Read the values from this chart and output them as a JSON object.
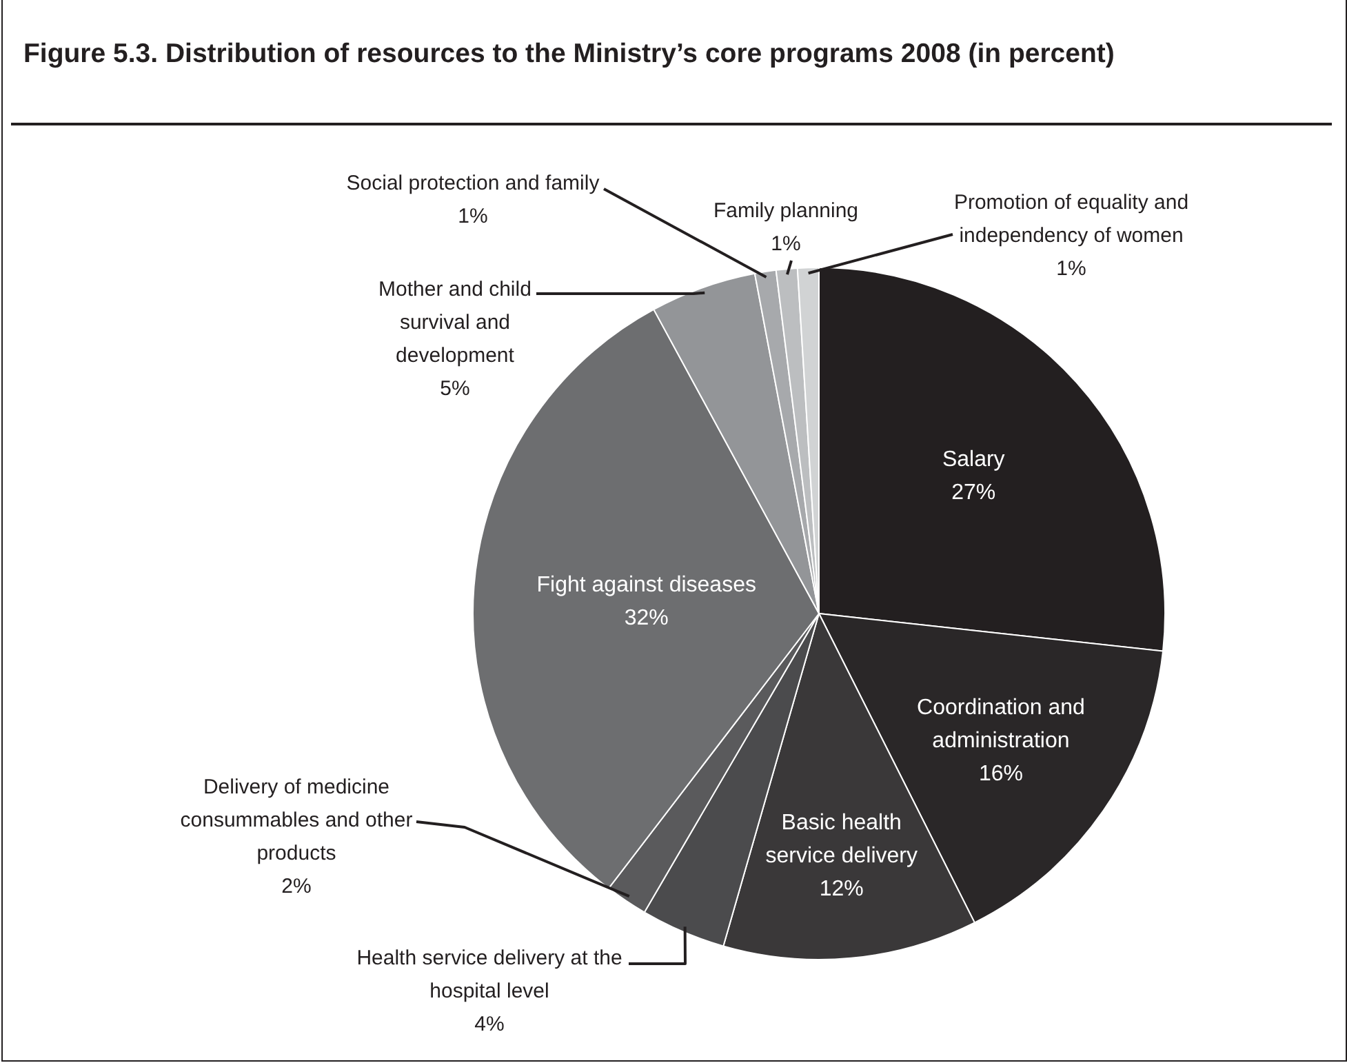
{
  "chart_data": {
    "type": "pie",
    "title": "Figure 5.3. Distribution of resources to the Ministry’s core programs 2008 (in percent)",
    "categories": [
      "Salary",
      "Coordination and administration",
      "Basic health service delivery",
      "Health service delivery at the hospital level",
      "Delivery of medicine consummables and other products",
      "Fight against diseases",
      "Mother and child survival and development",
      "Social protection and family",
      "Family planning",
      "Promotion of equality and independency of women"
    ],
    "values": [
      27,
      16,
      12,
      4,
      2,
      32,
      5,
      1,
      1,
      1
    ],
    "value_labels": [
      "27%",
      "16%",
      "12%",
      "4%",
      "2%",
      "32%",
      "5%",
      "1%",
      "1%",
      "1%"
    ],
    "colors": [
      "#231f20",
      "#2a2728",
      "#3a3839",
      "#4b4b4d",
      "#5a5a5c",
      "#6d6e70",
      "#939598",
      "#a7a9ac",
      "#bcbec0",
      "#d1d3d4"
    ]
  }
}
